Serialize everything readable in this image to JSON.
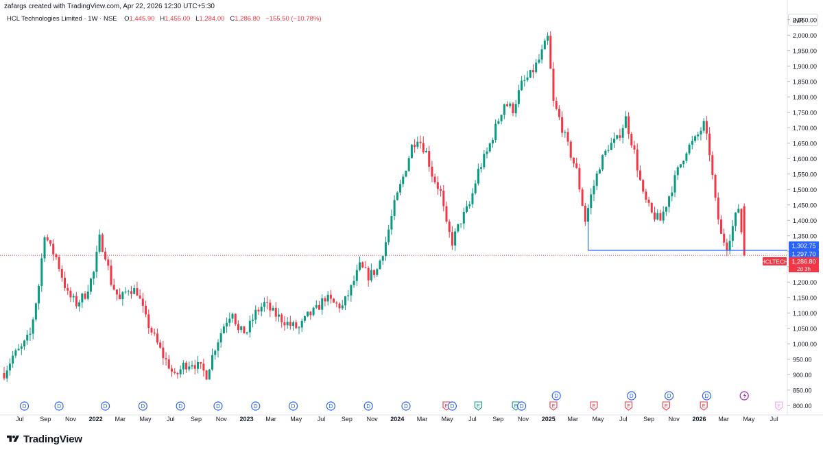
{
  "header": {
    "credit": "zafargs created with TradingView.com, Apr 22, 2026 12:30 UTC+5:30",
    "symbol": "HCL Technologies Limited · 1W · NSE",
    "open_label": "O",
    "open": "1,445.90",
    "high_label": "H",
    "high": "1,455.00",
    "low_label": "L",
    "low": "1,284.00",
    "close_label": "C",
    "close": "1,286.80",
    "change": "−155.50 (−10.78%)",
    "currency": "INR"
  },
  "colors": {
    "up": "#089981",
    "down": "#f23645",
    "line": "#2962ff",
    "badge_blue": "#2962ff",
    "badge_red": "#f23645"
  },
  "chart_data": {
    "type": "candlestick",
    "ylim": [
      785,
      2025
    ],
    "y_ticks": [
      800,
      850,
      900,
      950,
      1000,
      1050,
      1100,
      1150,
      1200,
      1250,
      1300,
      1350,
      1400,
      1450,
      1500,
      1550,
      1600,
      1650,
      1700,
      1750,
      1800,
      1850,
      1900,
      1950,
      2000,
      2050
    ],
    "y_tick_labels": [
      "800.00",
      "850.00",
      "900.00",
      "950.00",
      "1,000.00",
      "1,050.00",
      "1,100.00",
      "1,150.00",
      "1,200.00",
      "1,250.00",
      "1,300.00",
      "1,350.00",
      "1,400.00",
      "1,450.00",
      "1,500.00",
      "1,550.00",
      "1,600.00",
      "1,650.00",
      "1,700.00",
      "1,750.00",
      "1,800.00",
      "1,850.00",
      "1,900.00",
      "1,950.00",
      "2,000.00",
      "2,050.00"
    ],
    "x_labels": [
      {
        "date": "2021-07-01",
        "label": "Jul",
        "bold": false
      },
      {
        "date": "2021-09-01",
        "label": "Sep",
        "bold": false
      },
      {
        "date": "2021-11-01",
        "label": "Nov",
        "bold": false
      },
      {
        "date": "2022-01-01",
        "label": "2022",
        "bold": true
      },
      {
        "date": "2022-03-01",
        "label": "Mar",
        "bold": false
      },
      {
        "date": "2022-05-01",
        "label": "May",
        "bold": false
      },
      {
        "date": "2022-07-01",
        "label": "Jul",
        "bold": false
      },
      {
        "date": "2022-09-01",
        "label": "Sep",
        "bold": false
      },
      {
        "date": "2022-11-01",
        "label": "Nov",
        "bold": false
      },
      {
        "date": "2023-01-01",
        "label": "2023",
        "bold": true
      },
      {
        "date": "2023-03-01",
        "label": "Mar",
        "bold": false
      },
      {
        "date": "2023-05-01",
        "label": "May",
        "bold": false
      },
      {
        "date": "2023-07-01",
        "label": "Jul",
        "bold": false
      },
      {
        "date": "2023-09-01",
        "label": "Sep",
        "bold": false
      },
      {
        "date": "2023-11-01",
        "label": "Nov",
        "bold": false
      },
      {
        "date": "2024-01-01",
        "label": "2024",
        "bold": true
      },
      {
        "date": "2024-03-01",
        "label": "Mar",
        "bold": false
      },
      {
        "date": "2024-05-01",
        "label": "May",
        "bold": false
      },
      {
        "date": "2024-07-01",
        "label": "Jul",
        "bold": false
      },
      {
        "date": "2024-09-01",
        "label": "Sep",
        "bold": false
      },
      {
        "date": "2024-11-01",
        "label": "Nov",
        "bold": false
      },
      {
        "date": "2025-01-01",
        "label": "2025",
        "bold": true
      },
      {
        "date": "2025-03-01",
        "label": "Mar",
        "bold": false
      },
      {
        "date": "2025-05-01",
        "label": "May",
        "bold": false
      },
      {
        "date": "2025-07-01",
        "label": "Jul",
        "bold": false
      },
      {
        "date": "2025-09-01",
        "label": "Sep",
        "bold": false
      },
      {
        "date": "2025-11-01",
        "label": "Nov",
        "bold": false
      },
      {
        "date": "2026-01-01",
        "label": "2026",
        "bold": true
      },
      {
        "date": "2026-03-01",
        "label": "Mar",
        "bold": false
      },
      {
        "date": "2026-05-01",
        "label": "May",
        "bold": false
      },
      {
        "date": "2026-07-01",
        "label": "Jul",
        "bold": false
      }
    ],
    "price_path": [
      [
        "2021-05-24",
        905
      ],
      [
        "2021-06-14",
        960
      ],
      [
        "2021-07-05",
        985
      ],
      [
        "2021-07-26",
        1030
      ],
      [
        "2021-08-16",
        1190
      ],
      [
        "2021-08-30",
        1360
      ],
      [
        "2021-09-13",
        1310
      ],
      [
        "2021-09-27",
        1280
      ],
      [
        "2021-10-11",
        1220
      ],
      [
        "2021-10-25",
        1160
      ],
      [
        "2021-11-15",
        1130
      ],
      [
        "2021-12-06",
        1160
      ],
      [
        "2021-12-27",
        1230
      ],
      [
        "2022-01-10",
        1340
      ],
      [
        "2022-01-24",
        1290
      ],
      [
        "2022-02-07",
        1200
      ],
      [
        "2022-02-28",
        1140
      ],
      [
        "2022-03-21",
        1180
      ],
      [
        "2022-04-11",
        1170
      ],
      [
        "2022-05-02",
        1080
      ],
      [
        "2022-05-23",
        1020
      ],
      [
        "2022-06-13",
        960
      ],
      [
        "2022-06-27",
        930
      ],
      [
        "2022-07-11",
        890
      ],
      [
        "2022-08-01",
        930
      ],
      [
        "2022-08-22",
        940
      ],
      [
        "2022-09-12",
        920
      ],
      [
        "2022-09-26",
        900
      ],
      [
        "2022-10-17",
        990
      ],
      [
        "2022-11-07",
        1060
      ],
      [
        "2022-11-28",
        1110
      ],
      [
        "2022-12-12",
        1040
      ],
      [
        "2023-01-02",
        1040
      ],
      [
        "2023-01-23",
        1100
      ],
      [
        "2023-02-13",
        1130
      ],
      [
        "2023-03-06",
        1100
      ],
      [
        "2023-03-27",
        1080
      ],
      [
        "2023-04-17",
        1060
      ],
      [
        "2023-05-08",
        1050
      ],
      [
        "2023-05-29",
        1090
      ],
      [
        "2023-06-19",
        1110
      ],
      [
        "2023-07-10",
        1150
      ],
      [
        "2023-07-31",
        1130
      ],
      [
        "2023-08-21",
        1120
      ],
      [
        "2023-09-11",
        1180
      ],
      [
        "2023-10-02",
        1250
      ],
      [
        "2023-10-23",
        1220
      ],
      [
        "2023-11-13",
        1240
      ],
      [
        "2023-12-04",
        1330
      ],
      [
        "2023-12-25",
        1450
      ],
      [
        "2024-01-15",
        1540
      ],
      [
        "2024-02-05",
        1640
      ],
      [
        "2024-02-19",
        1670
      ],
      [
        "2024-03-11",
        1620
      ],
      [
        "2024-03-25",
        1550
      ],
      [
        "2024-04-15",
        1490
      ],
      [
        "2024-04-29",
        1380
      ],
      [
        "2024-05-13",
        1330
      ],
      [
        "2024-06-03",
        1400
      ],
      [
        "2024-06-24",
        1450
      ],
      [
        "2024-07-15",
        1560
      ],
      [
        "2024-08-05",
        1620
      ],
      [
        "2024-08-26",
        1700
      ],
      [
        "2024-09-16",
        1780
      ],
      [
        "2024-10-07",
        1760
      ],
      [
        "2024-10-28",
        1840
      ],
      [
        "2024-11-18",
        1870
      ],
      [
        "2024-12-09",
        1920
      ],
      [
        "2024-12-30",
        1990
      ],
      [
        "2025-01-13",
        1780
      ],
      [
        "2025-01-27",
        1730
      ],
      [
        "2025-02-17",
        1640
      ],
      [
        "2025-03-10",
        1560
      ],
      [
        "2025-03-31",
        1400
      ],
      [
        "2025-04-14",
        1480
      ],
      [
        "2025-05-05",
        1580
      ],
      [
        "2025-05-26",
        1640
      ],
      [
        "2025-06-16",
        1660
      ],
      [
        "2025-07-07",
        1730
      ],
      [
        "2025-07-28",
        1620
      ],
      [
        "2025-08-18",
        1480
      ],
      [
        "2025-09-08",
        1420
      ],
      [
        "2025-09-29",
        1400
      ],
      [
        "2025-10-20",
        1480
      ],
      [
        "2025-11-10",
        1560
      ],
      [
        "2025-12-01",
        1630
      ],
      [
        "2025-12-22",
        1660
      ],
      [
        "2026-01-12",
        1710
      ],
      [
        "2026-01-26",
        1620
      ],
      [
        "2026-02-09",
        1460
      ],
      [
        "2026-02-23",
        1350
      ],
      [
        "2026-03-09",
        1320
      ],
      [
        "2026-03-23",
        1380
      ],
      [
        "2026-04-06",
        1442
      ],
      [
        "2026-04-20",
        1287
      ]
    ],
    "last_date": "2026-04-20",
    "current_price": 1286.8,
    "support_line": {
      "from": "2025-04-07",
      "to": "2026-04-20",
      "level": 1302.75
    },
    "price_badges": [
      {
        "value": "1,302.75",
        "color": "#2962ff"
      },
      {
        "value": "1,297.70",
        "color": "#2962ff"
      },
      {
        "value": "1,286.80",
        "color": "#f23645"
      }
    ],
    "ticker_badge": "HCLTECH",
    "countdown": "2d 3h",
    "events": [
      {
        "date": "2021-07-12",
        "type": "D"
      },
      {
        "date": "2021-10-04",
        "type": "D"
      },
      {
        "date": "2022-01-24",
        "type": "D"
      },
      {
        "date": "2022-04-25",
        "type": "D"
      },
      {
        "date": "2022-07-25",
        "type": "D"
      },
      {
        "date": "2022-10-24",
        "type": "D"
      },
      {
        "date": "2023-01-23",
        "type": "D"
      },
      {
        "date": "2023-04-24",
        "type": "D"
      },
      {
        "date": "2023-07-24",
        "type": "D"
      },
      {
        "date": "2023-10-23",
        "type": "D"
      },
      {
        "date": "2024-01-22",
        "type": "D"
      },
      {
        "date": "2024-04-29",
        "type": "E"
      },
      {
        "date": "2024-05-13",
        "type": "D"
      },
      {
        "date": "2024-07-15",
        "type": "E"
      },
      {
        "date": "2024-10-14",
        "type": "E"
      },
      {
        "date": "2024-10-28",
        "type": "D"
      },
      {
        "date": "2025-01-13",
        "type": "E"
      },
      {
        "date": "2025-01-20",
        "type": "D",
        "row": 2
      },
      {
        "date": "2025-04-21",
        "type": "E"
      },
      {
        "date": "2025-07-14",
        "type": "E"
      },
      {
        "date": "2025-07-21",
        "type": "D",
        "row": 2
      },
      {
        "date": "2025-10-13",
        "type": "E"
      },
      {
        "date": "2025-10-20",
        "type": "D",
        "row": 2
      },
      {
        "date": "2026-01-12",
        "type": "E"
      },
      {
        "date": "2026-01-19",
        "type": "D",
        "row": 2
      },
      {
        "date": "2026-04-20",
        "type": "S",
        "row": 2
      },
      {
        "date": "2026-07-13",
        "type": "E",
        "faded": true
      }
    ]
  },
  "footer": {
    "brand": "TradingView"
  }
}
